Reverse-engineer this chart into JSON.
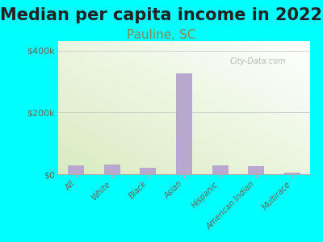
{
  "title": "Median per capita income in 2022",
  "subtitle": "Pauline, SC",
  "categories": [
    "All",
    "White",
    "Black",
    "Asian",
    "Hispanic",
    "American Indian",
    "Multirace"
  ],
  "values": [
    28000,
    30000,
    20000,
    325000,
    29000,
    27000,
    5000
  ],
  "bar_color": "#b8a8d0",
  "background_outer": "#00ffff",
  "yticks": [
    0,
    200000,
    400000
  ],
  "ytick_labels": [
    "$0",
    "$200k",
    "$400k"
  ],
  "ylim": [
    0,
    430000
  ],
  "title_fontsize": 15,
  "subtitle_fontsize": 11,
  "title_color": "#222222",
  "subtitle_color": "#888855",
  "tick_label_color": "#666655",
  "watermark": "City-Data.com",
  "gradient_top": "#f0f8ff",
  "gradient_bottom": "#d8ecc0"
}
